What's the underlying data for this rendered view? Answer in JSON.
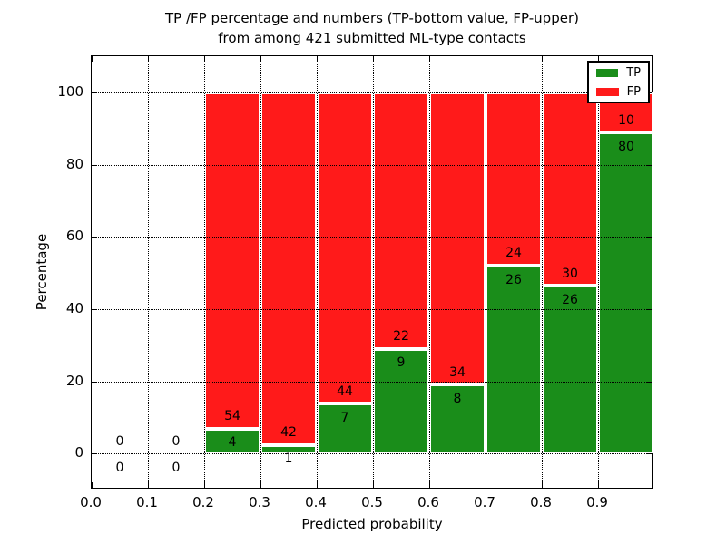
{
  "figure": {
    "title_lines": [
      "TP /FP percentage and numbers (TP-bottom value, FP-upper)",
      "from among 421 submitted ML-type contacts"
    ]
  },
  "chart_data": {
    "type": "bar",
    "subtype": "stacked-normalized-percentage",
    "title": "TP /FP percentage and numbers (TP-bottom value, FP-upper)\nfrom among 421 submitted ML-type contacts",
    "xlabel": "Predicted probability",
    "ylabel": "Percentage",
    "xlim": [
      0.0,
      1.0
    ],
    "ylim": [
      -10,
      110
    ],
    "x_tick_labels": [
      "0.0",
      "0.1",
      "0.2",
      "0.3",
      "0.4",
      "0.5",
      "0.6",
      "0.7",
      "0.8",
      "0.9"
    ],
    "x_tick_values": [
      0.0,
      0.1,
      0.2,
      0.3,
      0.4,
      0.5,
      0.6,
      0.7,
      0.8,
      0.9
    ],
    "y_tick_labels": [
      "0",
      "20",
      "40",
      "60",
      "80",
      "100"
    ],
    "y_tick_values": [
      0,
      20,
      40,
      60,
      80,
      100
    ],
    "grid": "dotted",
    "total_contacts": 421,
    "bin_width": 0.1,
    "bins": [
      {
        "x0": 0.0,
        "x1": 0.1,
        "tp": 0,
        "fp": 0
      },
      {
        "x0": 0.1,
        "x1": 0.2,
        "tp": 0,
        "fp": 0
      },
      {
        "x0": 0.2,
        "x1": 0.3,
        "tp": 4,
        "fp": 54
      },
      {
        "x0": 0.3,
        "x1": 0.4,
        "tp": 1,
        "fp": 42
      },
      {
        "x0": 0.4,
        "x1": 0.5,
        "tp": 7,
        "fp": 44
      },
      {
        "x0": 0.5,
        "x1": 0.6,
        "tp": 9,
        "fp": 22
      },
      {
        "x0": 0.6,
        "x1": 0.7,
        "tp": 8,
        "fp": 34
      },
      {
        "x0": 0.7,
        "x1": 0.8,
        "tp": 26,
        "fp": 24
      },
      {
        "x0": 0.8,
        "x1": 0.9,
        "tp": 26,
        "fp": 30
      },
      {
        "x0": 0.9,
        "x1": 1.0,
        "tp": 80,
        "fp": 10
      }
    ],
    "legend": {
      "position": "upper-right",
      "entries": [
        {
          "label": "TP",
          "color": "#1a8d1a"
        },
        {
          "label": "FP",
          "color": "#ff1a1a"
        }
      ]
    },
    "colors": {
      "tp": "#1a8d1a",
      "fp": "#ff1a1a",
      "bar_edge": "#ffffff",
      "grid": "#000000",
      "spine": "#000000",
      "background": "#ffffff"
    }
  }
}
